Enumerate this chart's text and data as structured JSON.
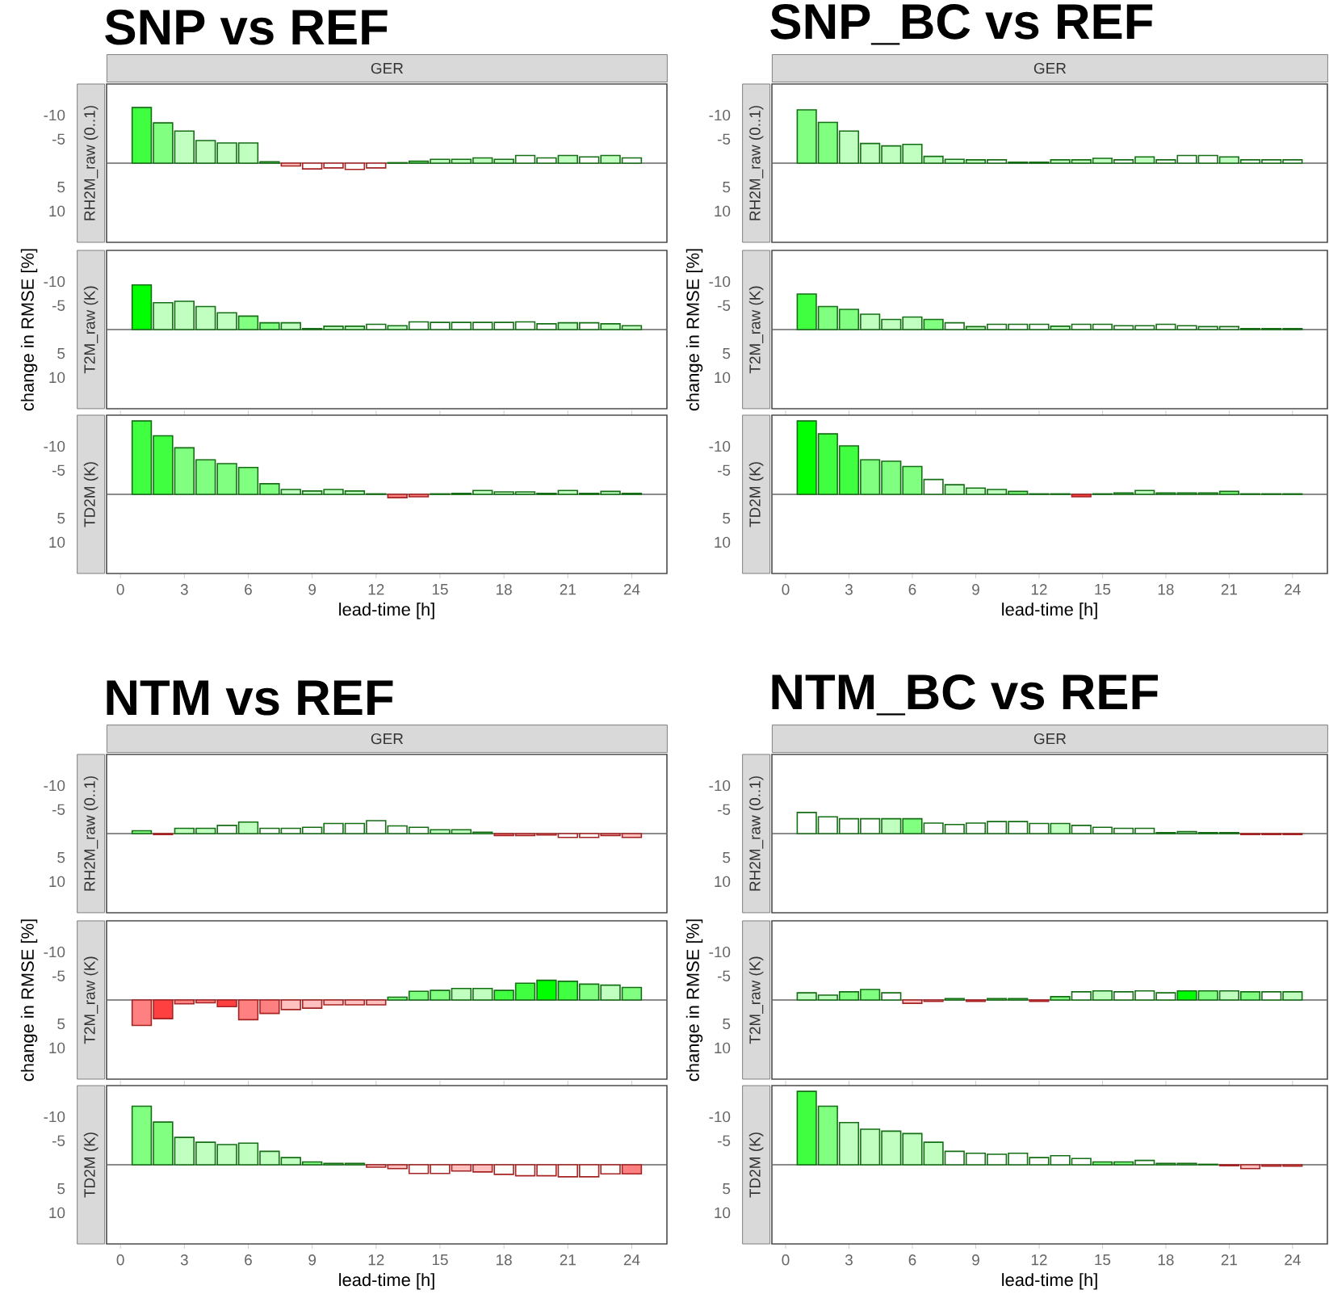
{
  "chart_data": [
    {
      "type": "bar",
      "title": "SNP vs REF",
      "subtitle": "GER",
      "ylabel": "RH2M_raw (0..1)",
      "tick_labels": "y",
      "xlim": [
        -0.65,
        25.65
      ],
      "ylim": [
        16.5,
        -16.5
      ],
      "yticks": [
        -10,
        -5,
        5,
        10
      ],
      "ref_lines": [
        {
          "axis": "y",
          "value": 0
        }
      ],
      "x": [
        1,
        2,
        3,
        4,
        5,
        6,
        7,
        8,
        9,
        10,
        11,
        12,
        13,
        14,
        15,
        16,
        17,
        18,
        19,
        20,
        21,
        22,
        23,
        24
      ],
      "values": [
        -11.6,
        -8.4,
        -6.7,
        -4.7,
        -4.2,
        -4.2,
        -0.3,
        0.6,
        1.2,
        1.0,
        1.3,
        1.0,
        -0.1,
        -0.4,
        -0.8,
        -0.8,
        -1.1,
        -0.8,
        -1.6,
        -1.1,
        -1.6,
        -1.3,
        -1.6,
        -1.1
      ],
      "colors": [
        "#40ff40",
        "#80ff80",
        "#c0ffc0",
        "#c0ffc0",
        "#c0ffc0",
        "#c0ffc0",
        "#80ff80",
        "#ffc0c0",
        "#ffffff",
        "#ffffff",
        "#ffffff",
        "#ffffff",
        "#ffffff",
        "#80ff80",
        "#c0ffc0",
        "#c0ffc0",
        "#c0ffc0",
        "#c0ffc0",
        "#ffffff",
        "#ffffff",
        "#c0ffc0",
        "#ffffff",
        "#c0ffc0",
        "#ffffff"
      ]
    },
    {
      "type": "bar",
      "ylabel": "T2M_raw (K)",
      "annotations": [
        "change in RMSE [%]"
      ],
      "tick_labels": "y",
      "xlim": [
        -0.65,
        25.65
      ],
      "ylim": [
        16.5,
        -16.5
      ],
      "yticks": [
        -10,
        -5,
        5,
        10
      ],
      "ref_lines": [
        {
          "axis": "y",
          "value": 0
        }
      ],
      "x": [
        1,
        2,
        3,
        4,
        5,
        6,
        7,
        8,
        9,
        10,
        11,
        12,
        13,
        14,
        15,
        16,
        17,
        18,
        19,
        20,
        21,
        22,
        23,
        24
      ],
      "values": [
        -9.3,
        -5.6,
        -5.9,
        -4.8,
        -3.5,
        -2.8,
        -1.4,
        -1.4,
        -0.2,
        -0.7,
        -0.7,
        -1.1,
        -0.8,
        -1.6,
        -1.5,
        -1.5,
        -1.5,
        -1.5,
        -1.6,
        -1.2,
        -1.4,
        -1.4,
        -1.2,
        -0.8
      ],
      "colors": [
        "#00ff00",
        "#c0ffc0",
        "#c0ffc0",
        "#c0ffc0",
        "#c0ffc0",
        "#80ff80",
        "#80ff80",
        "#c0ffc0",
        "#80ff80",
        "#c0ffc0",
        "#c0ffc0",
        "#ffffff",
        "#c0ffc0",
        "#ffffff",
        "#ffffff",
        "#ffffff",
        "#ffffff",
        "#ffffff",
        "#ffffff",
        "#ffffff",
        "#c0ffc0",
        "#ffffff",
        "#c0ffc0",
        "#c0ffc0"
      ]
    },
    {
      "type": "bar",
      "ylabel": "TD2M (K)",
      "xlabel": "lead-time [h]",
      "xlim": [
        -0.65,
        25.65
      ],
      "xticks": [
        0,
        3,
        6,
        9,
        12,
        15,
        18,
        21,
        24
      ],
      "ylim": [
        16.5,
        -16.5
      ],
      "yticks": [
        -10,
        -5,
        5,
        10
      ],
      "ref_lines": [
        {
          "axis": "y",
          "value": 0
        }
      ],
      "x": [
        1,
        2,
        3,
        4,
        5,
        6,
        7,
        8,
        9,
        10,
        11,
        12,
        13,
        14,
        15,
        16,
        17,
        18,
        19,
        20,
        21,
        22,
        23,
        24
      ],
      "values": [
        -15.3,
        -12.2,
        -9.7,
        -7.2,
        -6.4,
        -5.6,
        -2.2,
        -1.0,
        -0.7,
        -1.0,
        -0.7,
        -0.1,
        0.7,
        0.5,
        -0.1,
        -0.2,
        -0.8,
        -0.5,
        -0.5,
        -0.2,
        -0.8,
        -0.2,
        -0.6,
        -0.2
      ],
      "colors": [
        "#40ff40",
        "#40ff40",
        "#80ff80",
        "#80ff80",
        "#80ff80",
        "#80ff80",
        "#80ff80",
        "#c0ffc0",
        "#c0ffc0",
        "#c0ffc0",
        "#c0ffc0",
        "#80ff80",
        "#ff8080",
        "#ff8080",
        "#80ff80",
        "#80ff80",
        "#c0ffc0",
        "#c0ffc0",
        "#c0ffc0",
        "#80ff80",
        "#c0ffc0",
        "#80ff80",
        "#c0ffc0",
        "#80ff80"
      ]
    },
    {
      "type": "bar",
      "title": "SNP_BC vs REF",
      "subtitle": "GER",
      "ylabel": "RH2M_raw (0..1)",
      "tick_labels": "y",
      "xlim": [
        -0.65,
        25.65
      ],
      "ylim": [
        16.5,
        -16.5
      ],
      "yticks": [
        -10,
        -5,
        5,
        10
      ],
      "ref_lines": [
        {
          "axis": "y",
          "value": 0
        }
      ],
      "x": [
        1,
        2,
        3,
        4,
        5,
        6,
        7,
        8,
        9,
        10,
        11,
        12,
        13,
        14,
        15,
        16,
        17,
        18,
        19,
        20,
        21,
        22,
        23,
        24
      ],
      "values": [
        -11.1,
        -8.5,
        -6.7,
        -4.1,
        -3.6,
        -3.9,
        -1.4,
        -0.8,
        -0.7,
        -0.7,
        -0.2,
        -0.2,
        -0.7,
        -0.7,
        -1.0,
        -0.7,
        -1.3,
        -0.7,
        -1.6,
        -1.6,
        -1.3,
        -0.7,
        -0.7,
        -0.7
      ],
      "colors": [
        "#80ff80",
        "#80ff80",
        "#c0ffc0",
        "#c0ffc0",
        "#c0ffc0",
        "#c0ffc0",
        "#c0ffc0",
        "#c0ffc0",
        "#c0ffc0",
        "#ffffff",
        "#80ff80",
        "#80ff80",
        "#c0ffc0",
        "#c0ffc0",
        "#c0ffc0",
        "#ffffff",
        "#c0ffc0",
        "#ffffff",
        "#ffffff",
        "#ffffff",
        "#c0ffc0",
        "#ffffff",
        "#ffffff",
        "#ffffff"
      ]
    },
    {
      "type": "bar",
      "ylabel": "T2M_raw (K)",
      "annotations": [
        "change in RMSE [%]"
      ],
      "tick_labels": "y",
      "xlim": [
        -0.65,
        25.65
      ],
      "ylim": [
        16.5,
        -16.5
      ],
      "yticks": [
        -10,
        -5,
        5,
        10
      ],
      "ref_lines": [
        {
          "axis": "y",
          "value": 0
        }
      ],
      "x": [
        1,
        2,
        3,
        4,
        5,
        6,
        7,
        8,
        9,
        10,
        11,
        12,
        13,
        14,
        15,
        16,
        17,
        18,
        19,
        20,
        21,
        22,
        23,
        24
      ],
      "values": [
        -7.4,
        -4.8,
        -4.2,
        -3.2,
        -2.1,
        -2.6,
        -2.1,
        -1.4,
        -0.6,
        -1.1,
        -1.1,
        -1.1,
        -0.7,
        -1.1,
        -1.1,
        -0.8,
        -0.8,
        -1.1,
        -0.8,
        -0.6,
        -0.6,
        -0.2,
        -0.2,
        -0.2
      ],
      "colors": [
        "#40ff40",
        "#80ff80",
        "#80ff80",
        "#c0ffc0",
        "#c0ffc0",
        "#c0ffc0",
        "#80ff80",
        "#ffffff",
        "#c0ffc0",
        "#ffffff",
        "#ffffff",
        "#ffffff",
        "#c0ffc0",
        "#ffffff",
        "#ffffff",
        "#ffffff",
        "#ffffff",
        "#ffffff",
        "#ffffff",
        "#ffffff",
        "#ffffff",
        "#80ff80",
        "#80ff80",
        "#80ff80"
      ]
    },
    {
      "type": "bar",
      "ylabel": "TD2M (K)",
      "xlabel": "lead-time [h]",
      "xlim": [
        -0.65,
        25.65
      ],
      "xticks": [
        0,
        3,
        6,
        9,
        12,
        15,
        18,
        21,
        24
      ],
      "ylim": [
        16.5,
        -16.5
      ],
      "yticks": [
        -10,
        -5,
        5,
        10
      ],
      "ref_lines": [
        {
          "axis": "y",
          "value": 0
        }
      ],
      "x": [
        1,
        2,
        3,
        4,
        5,
        6,
        7,
        8,
        9,
        10,
        11,
        12,
        13,
        14,
        15,
        16,
        17,
        18,
        19,
        20,
        21,
        22,
        23,
        24
      ],
      "values": [
        -15.3,
        -12.6,
        -10.1,
        -7.2,
        -6.9,
        -5.8,
        -3.1,
        -2.0,
        -1.3,
        -1.0,
        -0.6,
        -0.1,
        -0.1,
        0.5,
        -0.1,
        -0.3,
        -0.8,
        -0.3,
        -0.3,
        -0.3,
        -0.6,
        -0.1,
        -0.1,
        -0.1
      ],
      "colors": [
        "#00ff00",
        "#40ff40",
        "#40ff40",
        "#80ff80",
        "#80ff80",
        "#80ff80",
        "#ffffff",
        "#c0ffc0",
        "#c0ffc0",
        "#c0ffc0",
        "#80ff80",
        "#80ff80",
        "#80ff80",
        "#ff4040",
        "#80ff80",
        "#80ff80",
        "#c0ffc0",
        "#80ff80",
        "#80ff80",
        "#80ff80",
        "#80ff80",
        "#80ff80",
        "#80ff80",
        "#80ff80"
      ]
    },
    {
      "type": "bar",
      "title": "NTM vs REF",
      "subtitle": "GER",
      "ylabel": "RH2M_raw (0..1)",
      "tick_labels": "y",
      "xlim": [
        -0.65,
        25.65
      ],
      "ylim": [
        16.5,
        -16.5
      ],
      "yticks": [
        -10,
        -5,
        5,
        10
      ],
      "ref_lines": [
        {
          "axis": "y",
          "value": 0
        }
      ],
      "x": [
        1,
        2,
        3,
        4,
        5,
        6,
        7,
        8,
        9,
        10,
        11,
        12,
        13,
        14,
        15,
        16,
        17,
        18,
        19,
        20,
        21,
        22,
        23,
        24
      ],
      "values": [
        -0.6,
        0.2,
        -1.1,
        -1.1,
        -1.7,
        -2.4,
        -1.1,
        -1.1,
        -1.3,
        -2.1,
        -2.1,
        -2.7,
        -1.6,
        -1.3,
        -0.8,
        -0.8,
        -0.3,
        0.4,
        0.4,
        0.3,
        0.8,
        0.8,
        0.4,
        0.8
      ],
      "colors": [
        "#80ff80",
        "#ff8080",
        "#c0ffc0",
        "#c0ffc0",
        "#ffffff",
        "#c0ffc0",
        "#ffffff",
        "#ffffff",
        "#ffffff",
        "#ffffff",
        "#ffffff",
        "#ffffff",
        "#ffffff",
        "#ffffff",
        "#c0ffc0",
        "#c0ffc0",
        "#80ff80",
        "#ff8080",
        "#ffc0c0",
        "#ffc0c0",
        "#ffffff",
        "#ffffff",
        "#ffc0c0",
        "#ffc0c0"
      ]
    },
    {
      "type": "bar",
      "ylabel": "T2M_raw (K)",
      "annotations": [
        "change in RMSE [%]"
      ],
      "tick_labels": "y",
      "xlim": [
        -0.65,
        25.65
      ],
      "ylim": [
        16.5,
        -16.5
      ],
      "yticks": [
        -10,
        -5,
        5,
        10
      ],
      "ref_lines": [
        {
          "axis": "y",
          "value": 0
        }
      ],
      "x": [
        1,
        2,
        3,
        4,
        5,
        6,
        7,
        8,
        9,
        10,
        11,
        12,
        13,
        14,
        15,
        16,
        17,
        18,
        19,
        20,
        21,
        22,
        23,
        24
      ],
      "values": [
        5.3,
        3.9,
        0.8,
        0.6,
        1.4,
        4.1,
        2.8,
        2.0,
        1.7,
        1.0,
        1.0,
        1.0,
        -0.6,
        -1.8,
        -2.0,
        -2.4,
        -2.4,
        -2.0,
        -3.5,
        -4.1,
        -3.9,
        -3.3,
        -3.1,
        -2.6
      ],
      "colors": [
        "#ff8080",
        "#ff4040",
        "#ff8080",
        "#ff8080",
        "#ff4040",
        "#ff8080",
        "#ff8080",
        "#ffc0c0",
        "#ffc0c0",
        "#ffc0c0",
        "#ffc0c0",
        "#ffc0c0",
        "#80ff80",
        "#80ff80",
        "#80ff80",
        "#c0ffc0",
        "#c0ffc0",
        "#40ff40",
        "#40ff40",
        "#00ff00",
        "#40ff40",
        "#80ff80",
        "#c0ffc0",
        "#80ff80"
      ]
    },
    {
      "type": "bar",
      "ylabel": "TD2M (K)",
      "xlabel": "lead-time [h]",
      "xlim": [
        -0.65,
        25.65
      ],
      "xticks": [
        0,
        3,
        6,
        9,
        12,
        15,
        18,
        21,
        24
      ],
      "ylim": [
        16.5,
        -16.5
      ],
      "yticks": [
        -10,
        -5,
        5,
        10
      ],
      "ref_lines": [
        {
          "axis": "y",
          "value": 0
        }
      ],
      "x": [
        1,
        2,
        3,
        4,
        5,
        6,
        7,
        8,
        9,
        10,
        11,
        12,
        13,
        14,
        15,
        16,
        17,
        18,
        19,
        20,
        21,
        22,
        23,
        24
      ],
      "values": [
        -12.2,
        -8.9,
        -5.7,
        -4.7,
        -4.2,
        -4.5,
        -2.8,
        -1.5,
        -0.6,
        -0.3,
        -0.3,
        0.5,
        0.8,
        1.8,
        1.8,
        1.3,
        1.5,
        2.0,
        2.3,
        2.3,
        2.5,
        2.5,
        1.9,
        1.9
      ],
      "colors": [
        "#80ff80",
        "#80ff80",
        "#c0ffc0",
        "#c0ffc0",
        "#c0ffc0",
        "#c0ffc0",
        "#c0ffc0",
        "#c0ffc0",
        "#80ff80",
        "#80ff80",
        "#80ff80",
        "#ffc0c0",
        "#ffc0c0",
        "#ffffff",
        "#ffffff",
        "#ffc0c0",
        "#ffc0c0",
        "#ffffff",
        "#ffffff",
        "#ffffff",
        "#ffffff",
        "#ffffff",
        "#ffffff",
        "#ff8080"
      ]
    },
    {
      "type": "bar",
      "title": "NTM_BC vs REF",
      "subtitle": "GER",
      "ylabel": "RH2M_raw (0..1)",
      "tick_labels": "y",
      "xlim": [
        -0.65,
        25.65
      ],
      "ylim": [
        16.5,
        -16.5
      ],
      "yticks": [
        -10,
        -5,
        5,
        10
      ],
      "ref_lines": [
        {
          "axis": "y",
          "value": 0
        }
      ],
      "x": [
        1,
        2,
        3,
        4,
        5,
        6,
        7,
        8,
        9,
        10,
        11,
        12,
        13,
        14,
        15,
        16,
        17,
        18,
        19,
        20,
        21,
        22,
        23,
        24
      ],
      "values": [
        -4.4,
        -3.5,
        -3.1,
        -3.1,
        -3.1,
        -3.1,
        -2.2,
        -1.9,
        -2.2,
        -2.5,
        -2.5,
        -2.1,
        -2.1,
        -1.7,
        -1.3,
        -1.1,
        -1.1,
        -0.2,
        -0.4,
        -0.2,
        -0.2,
        0.2,
        0.2,
        0.2
      ],
      "colors": [
        "#ffffff",
        "#ffffff",
        "#ffffff",
        "#ffffff",
        "#c0ffc0",
        "#80ff80",
        "#ffffff",
        "#ffffff",
        "#ffffff",
        "#ffffff",
        "#ffffff",
        "#ffffff",
        "#c0ffc0",
        "#ffffff",
        "#ffffff",
        "#ffffff",
        "#ffffff",
        "#80ff80",
        "#c0ffc0",
        "#80ff80",
        "#80ff80",
        "#ff8080",
        "#ff8080",
        "#ff8080"
      ]
    },
    {
      "type": "bar",
      "ylabel": "T2M_raw (K)",
      "annotations": [
        "change in RMSE [%]"
      ],
      "tick_labels": "y",
      "xlim": [
        -0.65,
        25.65
      ],
      "ylim": [
        16.5,
        -16.5
      ],
      "yticks": [
        -10,
        -5,
        5,
        10
      ],
      "ref_lines": [
        {
          "axis": "y",
          "value": 0
        }
      ],
      "x": [
        1,
        2,
        3,
        4,
        5,
        6,
        7,
        8,
        9,
        10,
        11,
        12,
        13,
        14,
        15,
        16,
        17,
        18,
        19,
        20,
        21,
        22,
        23,
        24
      ],
      "values": [
        -1.5,
        -1.0,
        -1.7,
        -2.2,
        -1.5,
        0.7,
        0.3,
        -0.3,
        0.3,
        -0.3,
        -0.3,
        0.3,
        -0.7,
        -1.7,
        -1.9,
        -1.7,
        -1.9,
        -1.5,
        -1.9,
        -1.9,
        -1.9,
        -1.7,
        -1.7,
        -1.7
      ],
      "colors": [
        "#c0ffc0",
        "#c0ffc0",
        "#80ff80",
        "#80ff80",
        "#ffffff",
        "#ffc0c0",
        "#ffc0c0",
        "#80ff80",
        "#ff4040",
        "#80ff80",
        "#80ff80",
        "#ff4040",
        "#80ff80",
        "#ffffff",
        "#c0ffc0",
        "#ffffff",
        "#ffffff",
        "#ffffff",
        "#00ff00",
        "#80ff80",
        "#c0ffc0",
        "#80ff80",
        "#ffffff",
        "#c0ffc0"
      ]
    },
    {
      "type": "bar",
      "ylabel": "TD2M (K)",
      "xlabel": "lead-time [h]",
      "xlim": [
        -0.65,
        25.65
      ],
      "xticks": [
        0,
        3,
        6,
        9,
        12,
        15,
        18,
        21,
        24
      ],
      "ylim": [
        16.5,
        -16.5
      ],
      "yticks": [
        -10,
        -5,
        5,
        10
      ],
      "ref_lines": [
        {
          "axis": "y",
          "value": 0
        }
      ],
      "x": [
        1,
        2,
        3,
        4,
        5,
        6,
        7,
        8,
        9,
        10,
        11,
        12,
        13,
        14,
        15,
        16,
        17,
        18,
        19,
        20,
        21,
        22,
        23,
        24
      ],
      "values": [
        -15.3,
        -12.2,
        -8.8,
        -7.4,
        -7.0,
        -6.5,
        -4.7,
        -2.8,
        -2.4,
        -2.2,
        -2.4,
        -1.5,
        -1.9,
        -1.3,
        -0.6,
        -0.6,
        -0.9,
        -0.3,
        -0.3,
        -0.1,
        0.2,
        0.8,
        0.3,
        0.3
      ],
      "colors": [
        "#40ff40",
        "#80ff80",
        "#c0ffc0",
        "#c0ffc0",
        "#c0ffc0",
        "#c0ffc0",
        "#c0ffc0",
        "#ffffff",
        "#ffffff",
        "#ffffff",
        "#ffffff",
        "#ffffff",
        "#ffffff",
        "#ffffff",
        "#80ff80",
        "#80ff80",
        "#ffffff",
        "#80ff80",
        "#80ff80",
        "#c0ffc0",
        "#ff8080",
        "#ffc0c0",
        "#ff8080",
        "#ff8080"
      ]
    }
  ]
}
